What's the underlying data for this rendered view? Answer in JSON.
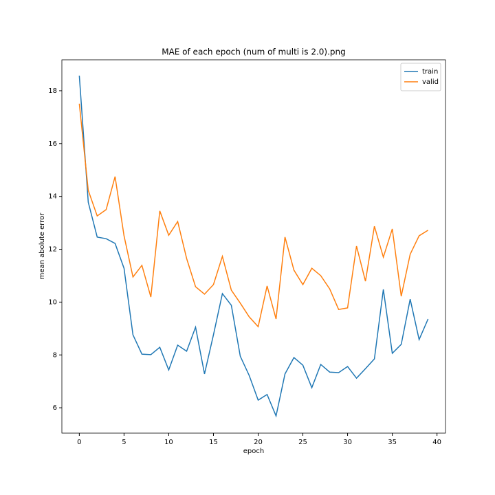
{
  "chart_data": {
    "type": "line",
    "title": "MAE of each epoch (num of multi is 2.0).png",
    "x_label": "epoch",
    "y_label": "mean abolute error",
    "x": [
      0,
      1,
      2,
      3,
      4,
      5,
      6,
      7,
      8,
      9,
      10,
      11,
      12,
      13,
      14,
      15,
      16,
      17,
      18,
      19,
      20,
      21,
      22,
      23,
      24,
      25,
      26,
      27,
      28,
      29,
      30,
      31,
      32,
      33,
      34,
      35,
      36,
      37,
      38,
      39
    ],
    "series": [
      {
        "name": "train",
        "color": "#1f77b4",
        "values": [
          18.57,
          13.78,
          12.46,
          12.4,
          12.22,
          11.28,
          8.76,
          8.03,
          8.01,
          8.29,
          7.43,
          8.37,
          8.14,
          9.05,
          7.28,
          8.76,
          10.32,
          9.88,
          7.95,
          7.22,
          6.29,
          6.5,
          5.69,
          7.28,
          7.9,
          7.61,
          6.76,
          7.64,
          7.35,
          7.33,
          7.56,
          7.12,
          7.48,
          7.85,
          10.48,
          8.06,
          8.4,
          10.11,
          8.58,
          9.36
        ]
      },
      {
        "name": "valid",
        "color": "#ff7f0e",
        "values": [
          17.51,
          14.23,
          13.26,
          13.5,
          14.75,
          12.51,
          10.95,
          11.39,
          10.19,
          13.45,
          12.53,
          13.05,
          11.65,
          10.58,
          10.3,
          10.66,
          11.73,
          10.45,
          9.96,
          9.44,
          9.07,
          10.61,
          9.36,
          12.46,
          11.21,
          10.66,
          11.28,
          11.0,
          10.5,
          9.72,
          9.78,
          12.12,
          10.79,
          12.87,
          11.7,
          12.77,
          10.22,
          11.81,
          12.51,
          12.72
        ]
      }
    ],
    "xlim": [
      -1.95,
      40.95
    ],
    "xticks": [
      0,
      5,
      10,
      15,
      20,
      25,
      30,
      35,
      40
    ],
    "ylim": [
      5.04,
      19.17
    ],
    "yticks": [
      6,
      8,
      10,
      12,
      14,
      16,
      18
    ],
    "grid": false,
    "legend": "upper right"
  }
}
